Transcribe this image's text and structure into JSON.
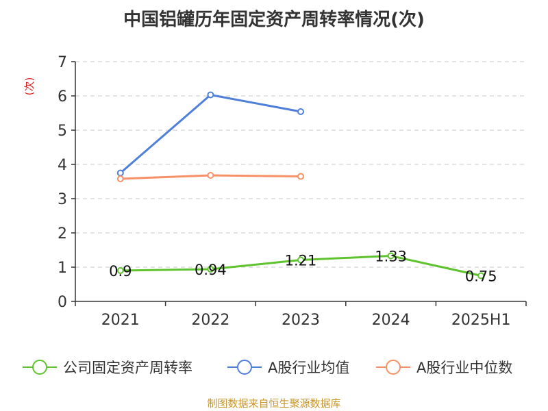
{
  "chart_data": {
    "type": "line",
    "title": "中国铝罐历年固定资产周转率情况(次)",
    "ylabel": "(次)",
    "xlabel": "",
    "categories": [
      "2021",
      "2022",
      "2023",
      "2024",
      "2025H1"
    ],
    "ylim": [
      0,
      7
    ],
    "yticks": [
      0,
      1,
      2,
      3,
      4,
      5,
      6,
      7
    ],
    "grid": true,
    "legend_position": "bottom",
    "series": [
      {
        "name": "公司固定资产周转率",
        "color": "#5ec32e",
        "values": [
          0.9,
          0.94,
          1.21,
          1.33,
          0.75
        ],
        "data_labels": [
          "0.9",
          "0.94",
          "1.21",
          "1.33",
          "0.75"
        ]
      },
      {
        "name": "A股行业均值",
        "color": "#4e7fd9",
        "values": [
          3.75,
          6.03,
          5.54,
          null,
          null
        ]
      },
      {
        "name": "A股行业中位数",
        "color": "#f79066",
        "values": [
          3.58,
          3.68,
          3.65,
          null,
          null
        ]
      }
    ]
  },
  "footer": {
    "source": "制图数据来自恒生聚源数据库"
  }
}
